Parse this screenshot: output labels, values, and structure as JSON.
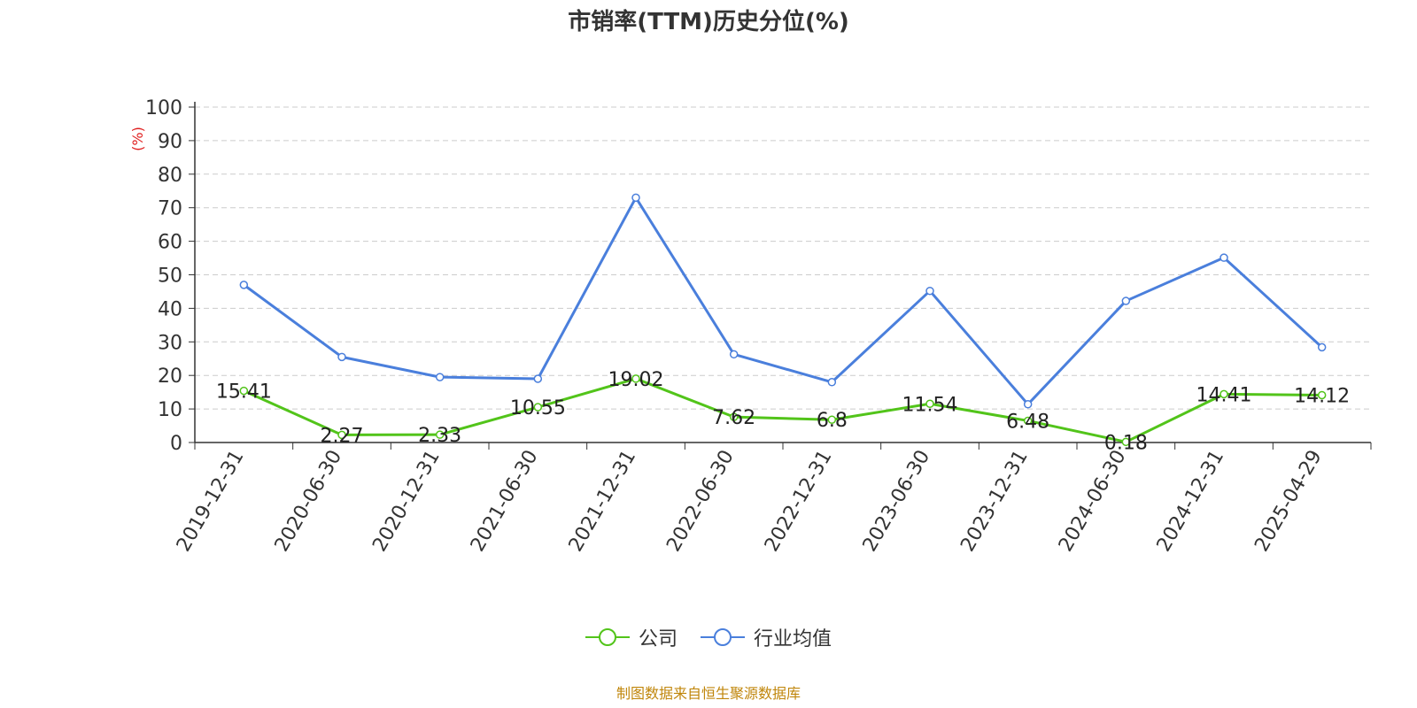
{
  "chart_data": {
    "type": "line",
    "title": "市销率(TTM)历史分位(%)",
    "ylabel": "(%)",
    "xlabel": "",
    "categories": [
      "2019-12-31",
      "2020-06-30",
      "2020-12-31",
      "2021-06-30",
      "2021-12-31",
      "2022-06-30",
      "2022-12-31",
      "2023-06-30",
      "2023-12-31",
      "2024-06-30",
      "2024-12-31",
      "2025-04-29"
    ],
    "ylim": [
      0,
      100
    ],
    "yticks": [
      0,
      10,
      20,
      30,
      40,
      50,
      60,
      70,
      80,
      90,
      100
    ],
    "grid": true,
    "legend_position": "bottom",
    "series": [
      {
        "name": "公司",
        "color": "#52c41a",
        "values": [
          15.41,
          2.27,
          2.33,
          10.55,
          19.02,
          7.62,
          6.8,
          11.54,
          6.48,
          0.18,
          14.41,
          14.12
        ],
        "labels": [
          "15.41",
          "2.27",
          "2.33",
          "10.55",
          "19.02",
          "7.62",
          "6.8",
          "11.54",
          "6.48",
          "0.18",
          "14.41",
          "14.12"
        ]
      },
      {
        "name": "行业均值",
        "color": "#4a7fdc",
        "values": [
          47,
          25.5,
          19.5,
          19,
          73,
          26.3,
          18,
          45.2,
          11.4,
          42.2,
          55.1,
          28.4
        ]
      }
    ]
  },
  "footer": {
    "source": "制图数据来自恒生聚源数据库"
  }
}
